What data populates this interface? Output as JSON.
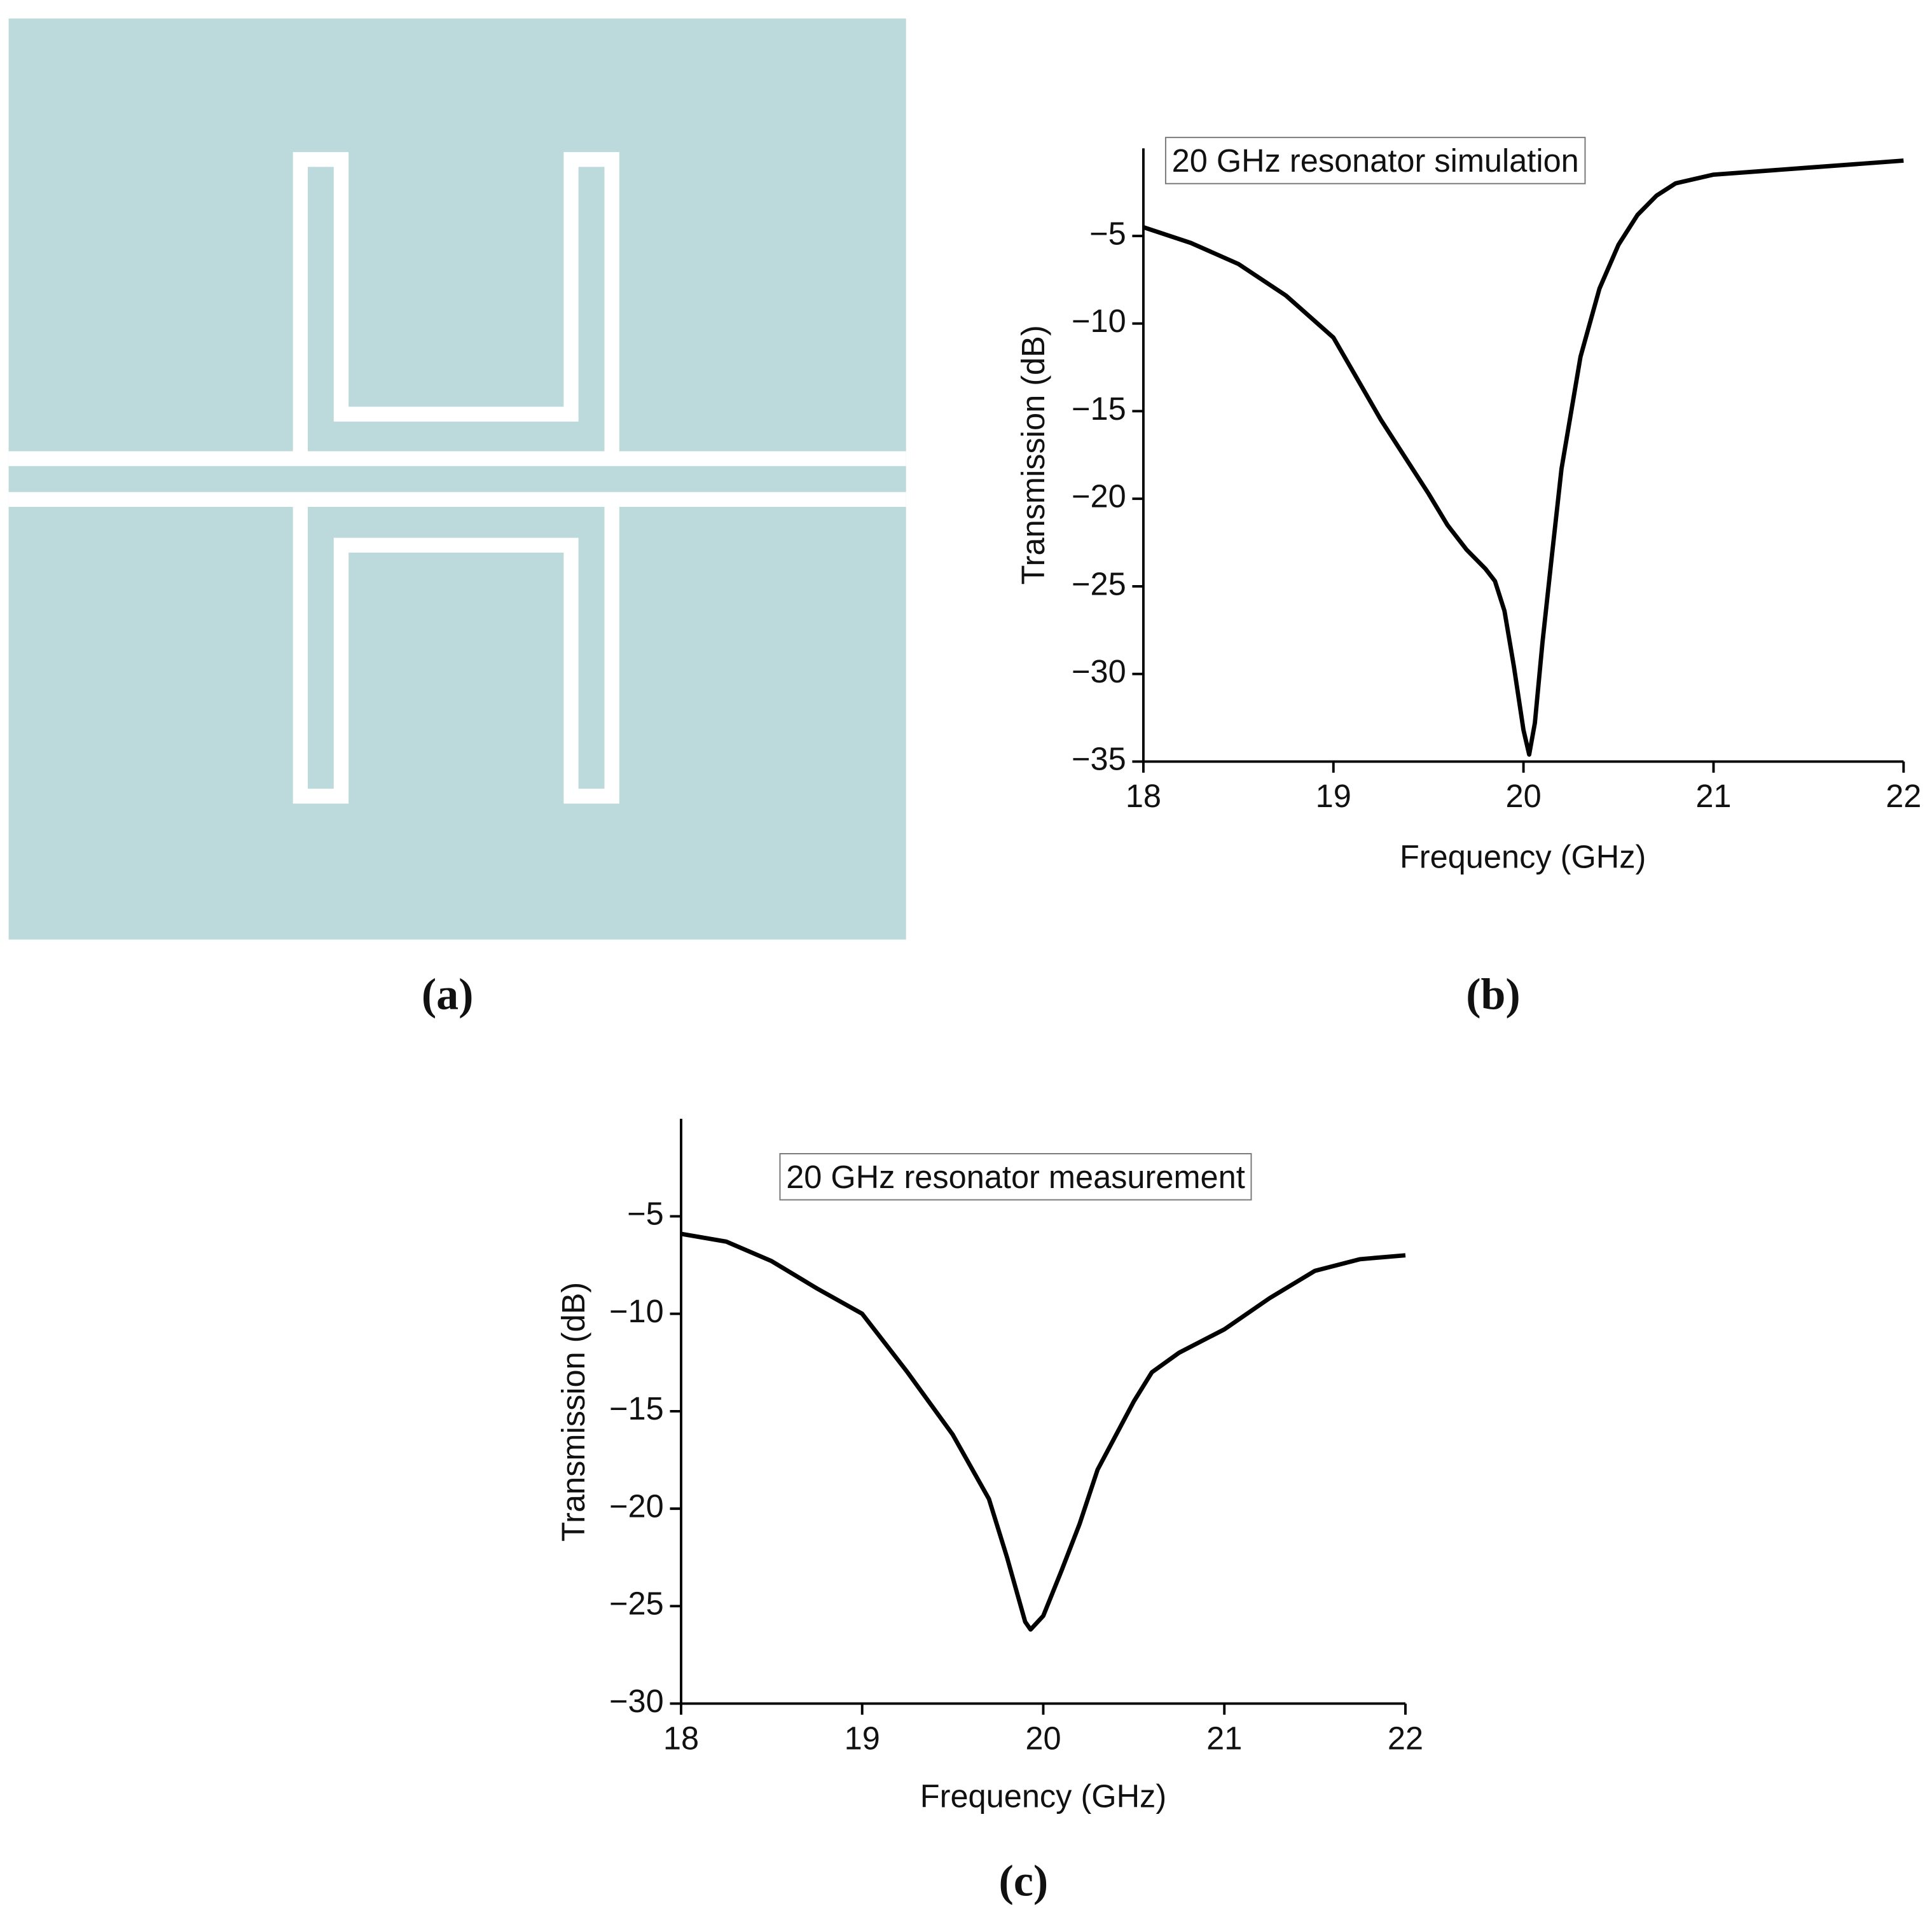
{
  "panel_labels": [
    "(a)",
    "(b)",
    "(c)"
  ],
  "chart_data": [
    {
      "type": "line",
      "annotation": "20 GHz resonator simulation",
      "x_label": "Frequency (GHz)",
      "y_label": "Transmission (dB)",
      "color": "#000000",
      "x": [
        18,
        18.25,
        18.5,
        18.75,
        19,
        19.25,
        19.5,
        19.6,
        19.7,
        19.8,
        19.85,
        19.9,
        19.95,
        20.0,
        20.03,
        20.06,
        20.1,
        20.15,
        20.2,
        20.3,
        20.4,
        20.5,
        20.6,
        20.7,
        20.8,
        21,
        21.5,
        22
      ],
      "values": [
        -4.5,
        -5.4,
        -6.6,
        -8.4,
        -10.8,
        -15.5,
        -19.7,
        -21.5,
        -22.9,
        -24,
        -24.7,
        -26.4,
        -29.6,
        -33.2,
        -34.6,
        -32.8,
        -28.2,
        -23.2,
        -18.3,
        -11.9,
        -8,
        -5.5,
        -3.8,
        -2.7,
        -2,
        -1.5,
        -1.1,
        -0.7
      ],
      "xlim": [
        18,
        22
      ],
      "xticks": [
        18,
        19,
        20,
        21,
        22
      ],
      "ylim": [
        -35,
        0
      ],
      "yticks": [
        {
          "value": -5,
          "label": "−5"
        },
        {
          "value": -10,
          "label": "−10"
        },
        {
          "value": -15,
          "label": "−15"
        },
        {
          "value": -20,
          "label": "−20"
        },
        {
          "value": -25,
          "label": "−25"
        },
        {
          "value": -30,
          "label": "−30"
        },
        {
          "value": -35,
          "label": "−35"
        }
      ]
    },
    {
      "type": "line",
      "annotation": "20 GHz resonator measurement",
      "x_label": "Frequency (GHz)",
      "y_label": "Transmission (dB)",
      "color": "#000000",
      "x": [
        18,
        18.25,
        18.5,
        18.75,
        19,
        19.25,
        19.5,
        19.7,
        19.8,
        19.9,
        19.93,
        20.0,
        20.1,
        20.2,
        20.3,
        20.5,
        20.6,
        20.75,
        21,
        21.25,
        21.5,
        21.75,
        22
      ],
      "values": [
        -5.9,
        -6.3,
        -7.3,
        -8.7,
        -10,
        -13,
        -16.2,
        -19.5,
        -22.5,
        -25.8,
        -26.2,
        -25.5,
        -23.2,
        -20.8,
        -18,
        -14.5,
        -13,
        -12,
        -10.8,
        -9.2,
        -7.8,
        -7.2,
        -7
      ],
      "xlim": [
        18,
        22
      ],
      "xticks": [
        18,
        19,
        20,
        21,
        22
      ],
      "ylim": [
        -30,
        0
      ],
      "yticks": [
        {
          "value": -5,
          "label": "−5"
        },
        {
          "value": -10,
          "label": "−10"
        },
        {
          "value": -15,
          "label": "−15"
        },
        {
          "value": -20,
          "label": "−20"
        },
        {
          "value": -25,
          "label": "−25"
        },
        {
          "value": -30,
          "label": "−30"
        }
      ]
    }
  ]
}
